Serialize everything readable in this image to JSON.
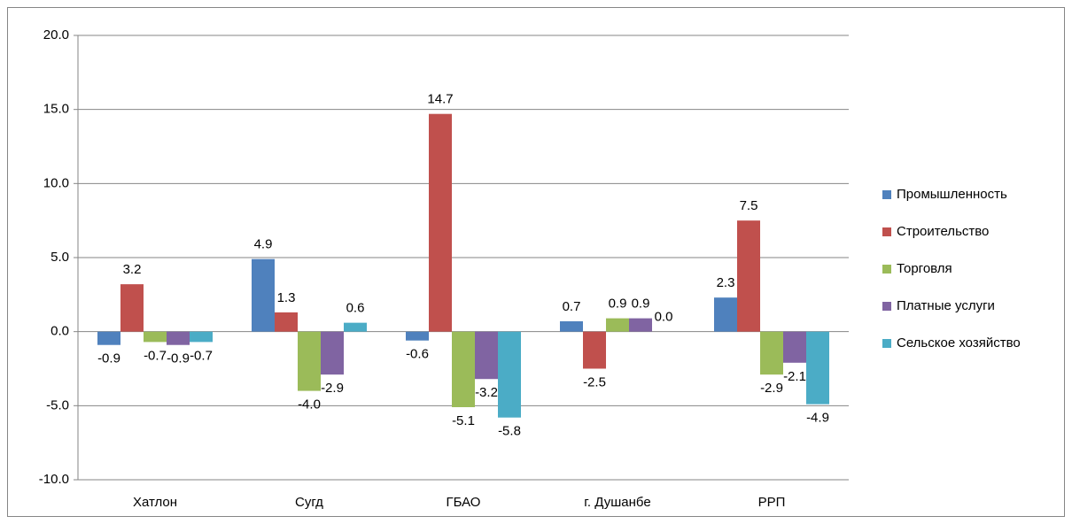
{
  "chart_data": {
    "type": "bar",
    "categories": [
      "Хатлон",
      "Сугд",
      "ГБАО",
      "г. Душанбе",
      "РРП"
    ],
    "series": [
      {
        "name": "Промышленность",
        "color": "#4f81bd",
        "values": [
          -0.9,
          4.9,
          -0.6,
          0.7,
          2.3
        ],
        "value_labels": [
          "-0.9",
          "4.9",
          "-0.6",
          "0.7",
          "2.3"
        ]
      },
      {
        "name": "Строительство",
        "color": "#c0504d",
        "values": [
          3.2,
          1.3,
          14.7,
          -2.5,
          7.5
        ],
        "value_labels": [
          "3.2",
          "1.3",
          "14.7",
          "-2.5",
          "7.5"
        ]
      },
      {
        "name": "Торговля",
        "color": "#9bbb59",
        "values": [
          -0.7,
          -4.0,
          -5.1,
          0.9,
          -2.9
        ],
        "value_labels": [
          "-0.7",
          "-4.0",
          "-5.1",
          "0.9",
          "-2.9"
        ]
      },
      {
        "name": "Платные услуги",
        "color": "#8064a2",
        "values": [
          -0.9,
          -2.9,
          -3.2,
          0.9,
          -2.1
        ],
        "value_labels": [
          "-0.9",
          "-2.9",
          "-3.2",
          "0.9",
          "-2.1"
        ]
      },
      {
        "name": "Сельское хозяйство",
        "color": "#4bacc6",
        "values": [
          -0.7,
          0.6,
          -5.8,
          0.0,
          -4.9
        ],
        "value_labels": [
          "-0.7",
          "0.6",
          "-5.8",
          "0.0",
          "-4.9"
        ]
      }
    ],
    "ylim": [
      -10,
      20
    ],
    "yticks": [
      {
        "value": -10,
        "label": "-10.0"
      },
      {
        "value": -5,
        "label": "-5.0"
      },
      {
        "value": 0,
        "label": "0.0"
      },
      {
        "value": 5,
        "label": "5.0"
      },
      {
        "value": 10,
        "label": "10.0"
      },
      {
        "value": 15,
        "label": "15.0"
      },
      {
        "value": 20,
        "label": "20.0"
      }
    ],
    "grid": true,
    "legend": "right"
  }
}
